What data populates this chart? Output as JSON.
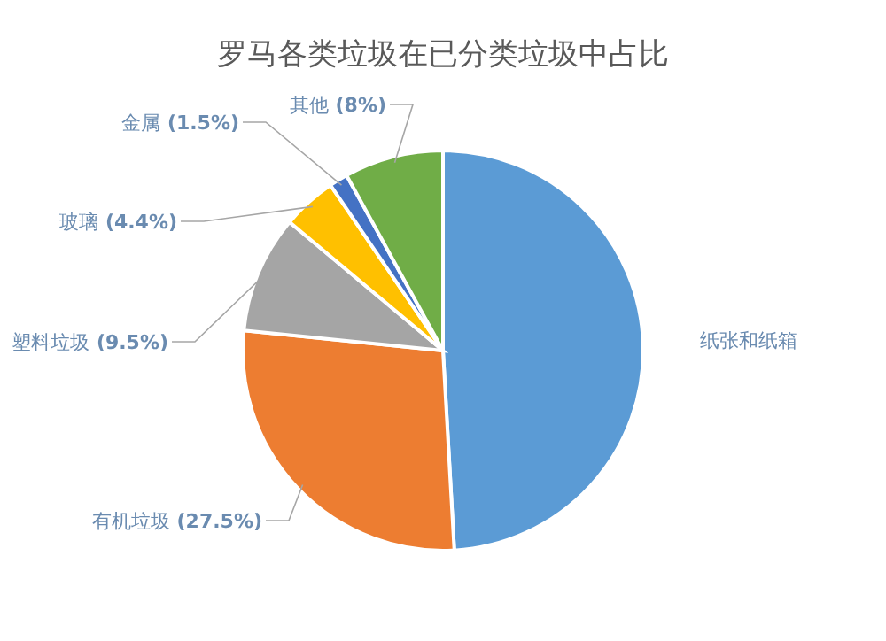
{
  "chart_data": {
    "type": "pie",
    "title": "罗马各类垃圾在已分类垃圾中占比",
    "categories": [
      "纸张和纸箱",
      "有机垃圾",
      "塑料垃圾",
      "玻璃",
      "金属",
      "其他"
    ],
    "values": [
      49.1,
      27.5,
      9.5,
      4.4,
      1.5,
      8
    ],
    "colors": [
      "#5b9bd5",
      "#ed7d31",
      "#a5a5a5",
      "#ffc000",
      "#4472c4",
      "#70ad47"
    ],
    "value_labels": [
      null,
      "(27.5%)",
      "(9.5%)",
      "(4.4%)",
      "(1.5%)",
      "(8%)"
    ]
  }
}
